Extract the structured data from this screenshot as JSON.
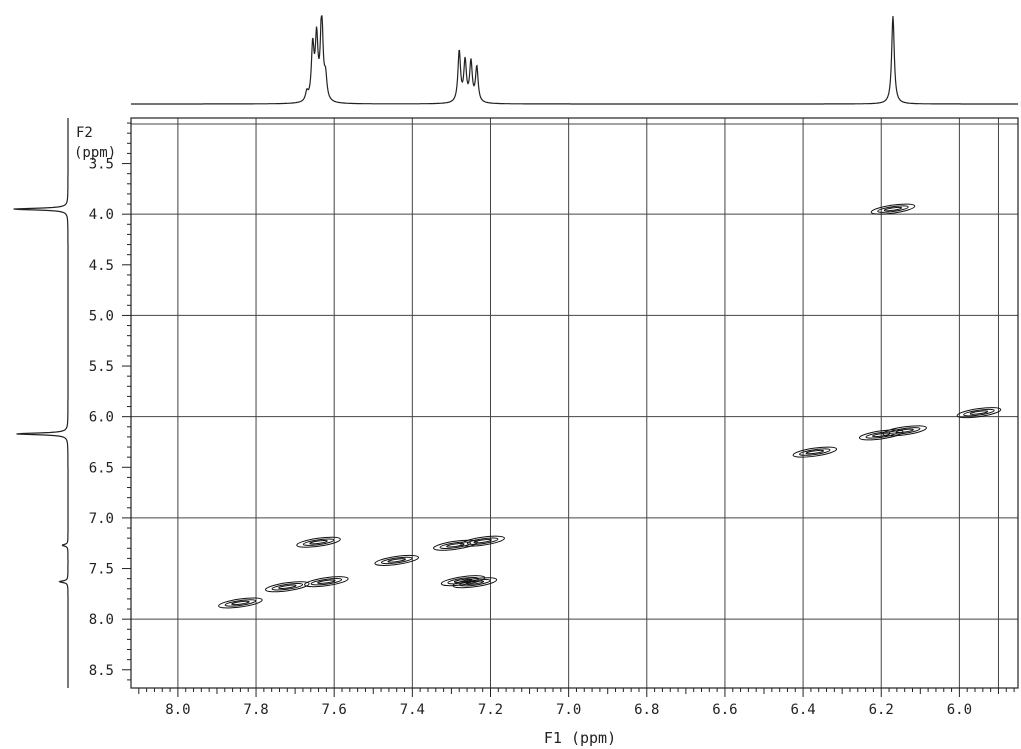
{
  "chart_data": {
    "type": "scatter",
    "title": "",
    "xlabel": "F1 (ppm)",
    "ylabel_line1": "F2",
    "ylabel_line2": "(ppm)",
    "xlim": [
      8.12,
      5.85
    ],
    "ylim": [
      3.05,
      8.68
    ],
    "x_ticks": [
      8.0,
      7.8,
      7.6,
      7.4,
      7.2,
      7.0,
      6.8,
      6.6,
      6.4,
      6.2,
      6.0
    ],
    "x_tick_labels": [
      "8.0",
      "7.8",
      "7.6",
      "7.4",
      "7.2",
      "7.0",
      "6.8",
      "6.6",
      "6.4",
      "6.2",
      "6.0"
    ],
    "y_ticks": [
      3.5,
      4.0,
      4.5,
      5.0,
      5.5,
      6.0,
      6.5,
      7.0,
      7.5,
      8.0,
      8.5
    ],
    "y_tick_labels": [
      "3.5",
      "4.0",
      "4.5",
      "5.0",
      "5.5",
      "6.0",
      "6.5",
      "7.0",
      "7.5",
      "8.0",
      "8.5"
    ],
    "grid": true,
    "cross_peaks": [
      {
        "x": 7.64,
        "y": 7.24
      },
      {
        "x": 7.72,
        "y": 7.68
      },
      {
        "x": 7.62,
        "y": 7.63
      },
      {
        "x": 7.84,
        "y": 7.84
      },
      {
        "x": 7.44,
        "y": 7.42
      },
      {
        "x": 7.29,
        "y": 7.27
      },
      {
        "x": 7.22,
        "y": 7.23
      },
      {
        "x": 7.27,
        "y": 7.62
      },
      {
        "x": 7.24,
        "y": 7.64
      },
      {
        "x": 6.17,
        "y": 3.95
      },
      {
        "x": 6.2,
        "y": 6.18
      },
      {
        "x": 6.14,
        "y": 6.14
      },
      {
        "x": 6.37,
        "y": 6.35
      },
      {
        "x": 5.95,
        "y": 5.96
      }
    ],
    "f1_projection_peaks": [
      {
        "ppm": 7.67,
        "height": 0.1
      },
      {
        "ppm": 7.655,
        "height": 0.62
      },
      {
        "ppm": 7.645,
        "height": 0.7
      },
      {
        "ppm": 7.632,
        "height": 1.0
      },
      {
        "ppm": 7.622,
        "height": 0.25
      },
      {
        "ppm": 7.28,
        "height": 0.58
      },
      {
        "ppm": 7.265,
        "height": 0.46
      },
      {
        "ppm": 7.25,
        "height": 0.45
      },
      {
        "ppm": 7.235,
        "height": 0.4
      },
      {
        "ppm": 6.17,
        "height": 1.0
      }
    ],
    "f2_projection_peaks": [
      {
        "ppm": 3.95,
        "height": 0.95
      },
      {
        "ppm": 6.17,
        "height": 0.9
      },
      {
        "ppm": 7.27,
        "height": 0.1
      },
      {
        "ppm": 7.63,
        "height": 0.15
      }
    ]
  }
}
